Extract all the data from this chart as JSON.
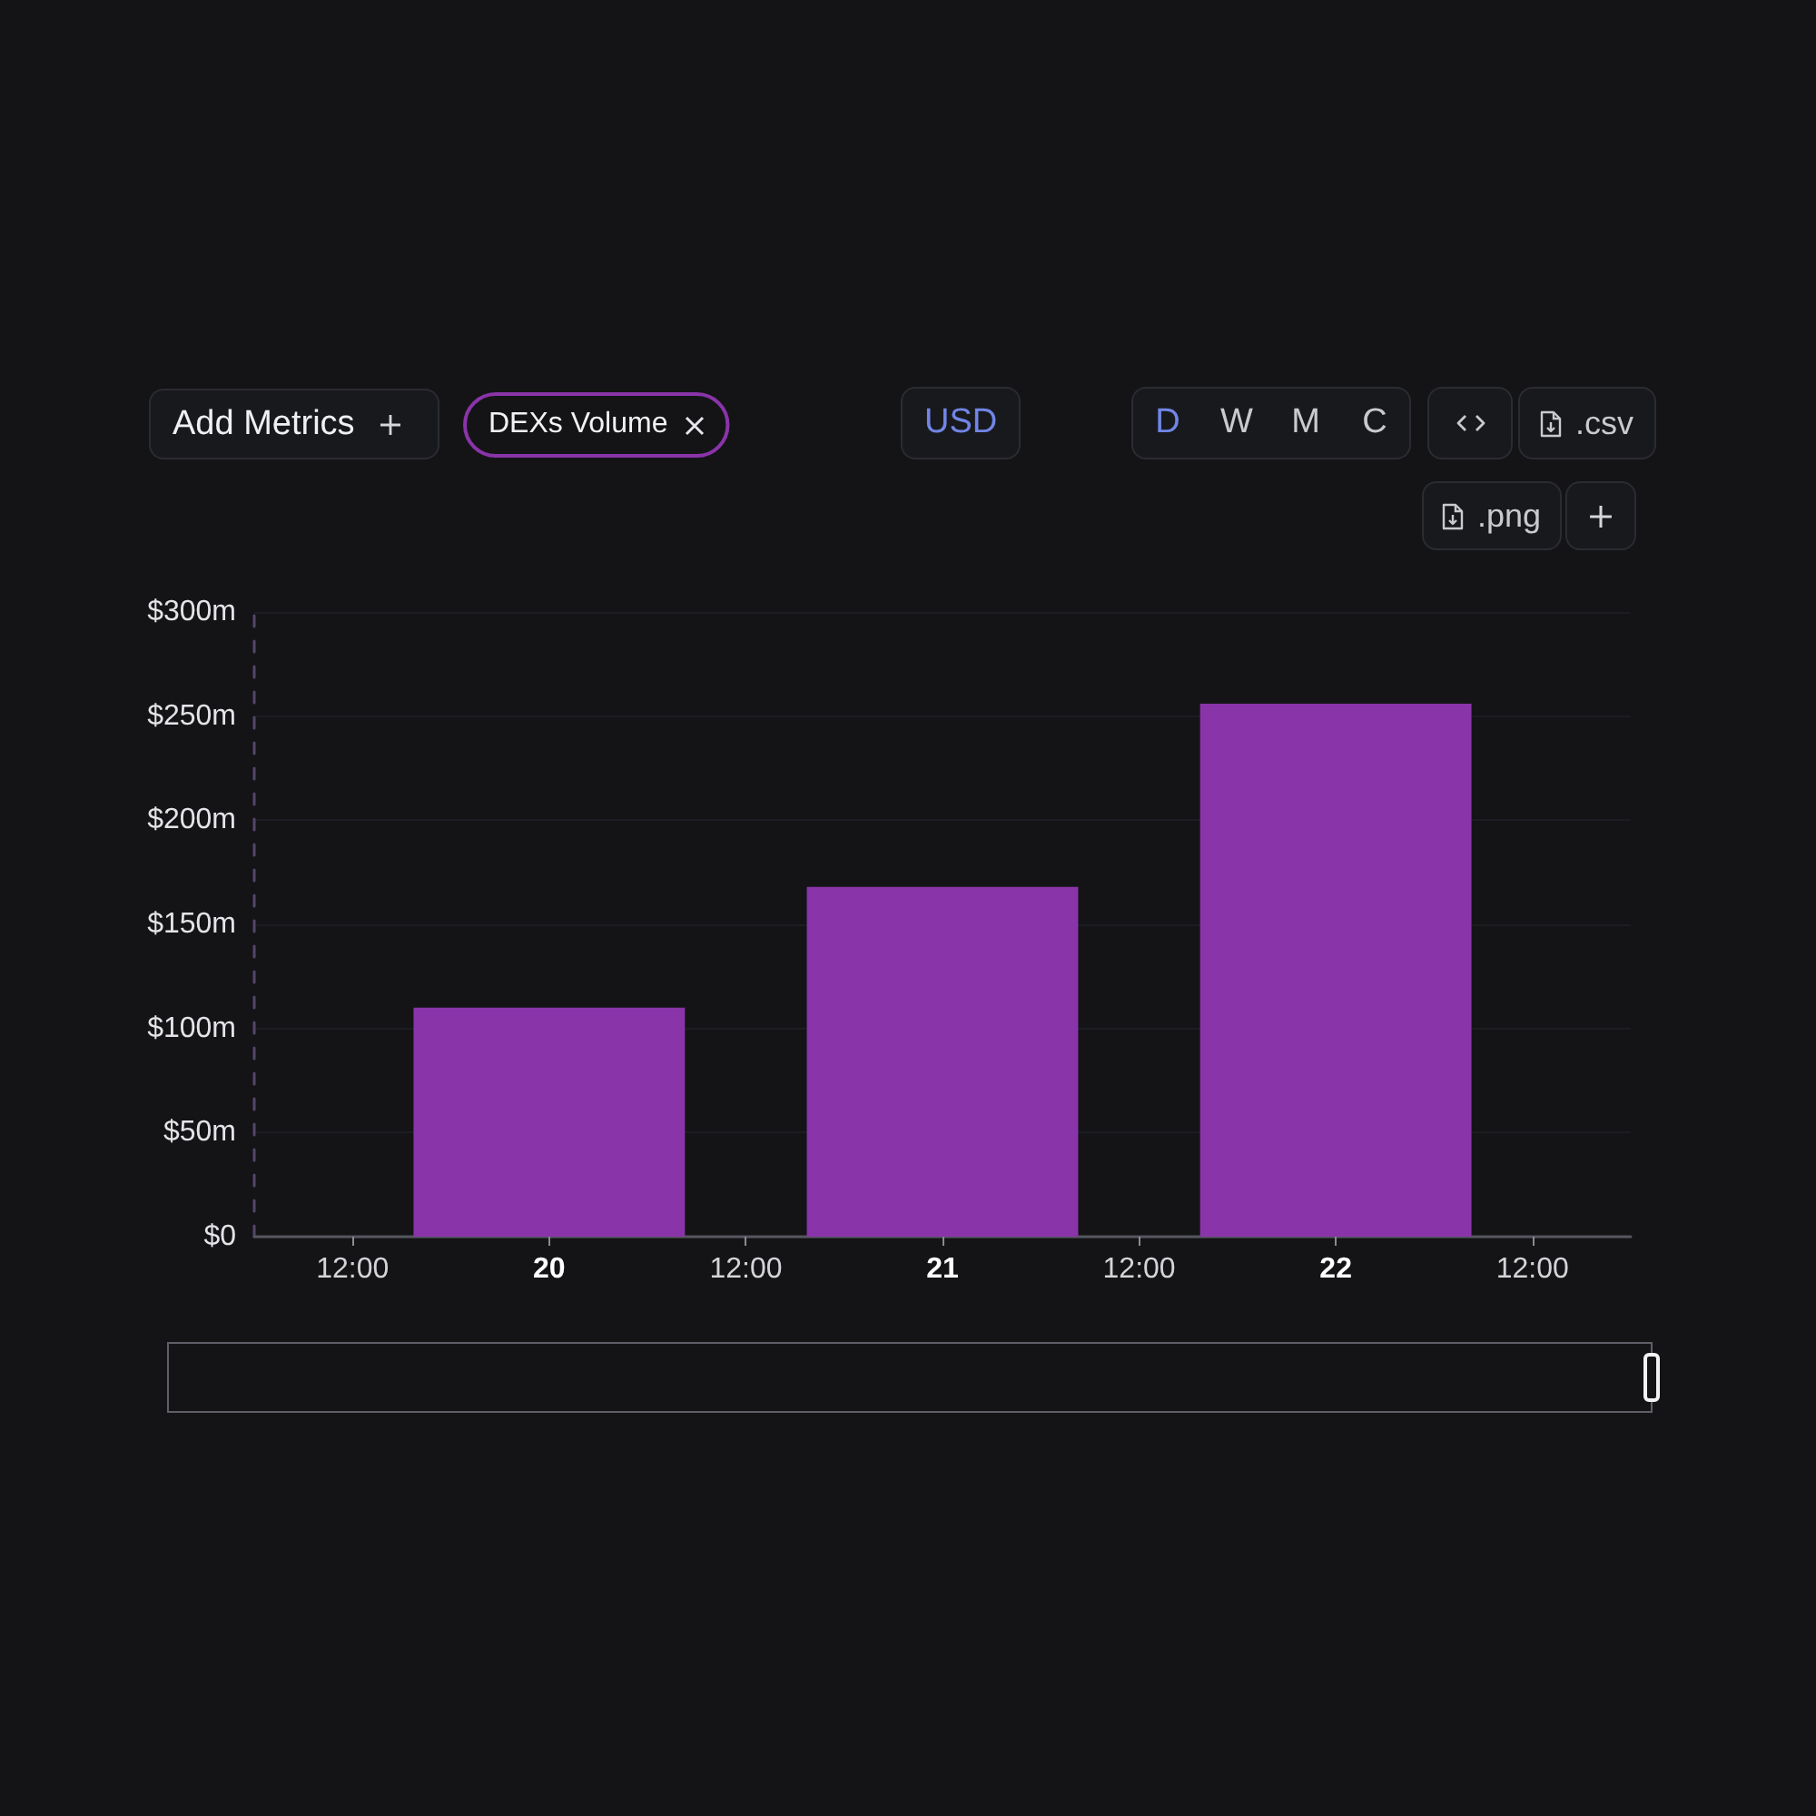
{
  "chart_data": {
    "type": "bar",
    "categories": [
      "12:00",
      "20",
      "12:00",
      "21",
      "12:00",
      "22",
      "12:00"
    ],
    "series": [
      {
        "name": "DEXs Volume",
        "color": "#8a34a9",
        "values": [
          null,
          110,
          null,
          168,
          null,
          256,
          null
        ]
      }
    ],
    "ylim": [
      0,
      300
    ],
    "yticks": [
      {
        "value": 0,
        "label": "$0"
      },
      {
        "value": 50,
        "label": "$50m"
      },
      {
        "value": 100,
        "label": "$100m"
      },
      {
        "value": 150,
        "label": "$150m"
      },
      {
        "value": 200,
        "label": "$200m"
      },
      {
        "value": 250,
        "label": "$250m"
      },
      {
        "value": 300,
        "label": "$300m"
      }
    ],
    "grid": "y",
    "legend": "top left",
    "annotations": [
      "Add Metrics",
      "USD",
      "D",
      "W",
      "M",
      "C",
      ".csv",
      ".png"
    ]
  }
}
